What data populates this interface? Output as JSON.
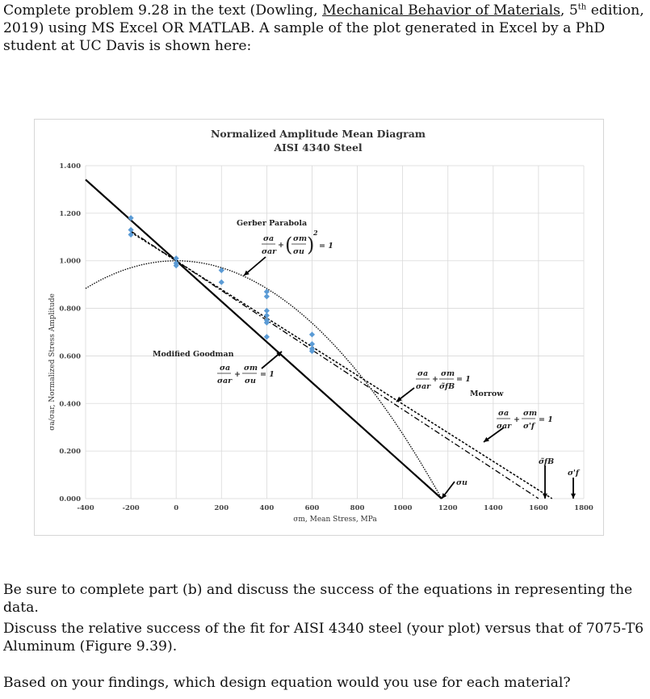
{
  "intro": {
    "part1": "Complete problem  9.28 in the text (Dowling, ",
    "book": "Mechanical Behavior of Materials",
    "part2": ", 5",
    "sup": "th",
    "part3": " edition, 2019)  using MS Excel OR MATLAB.  A sample of the plot generated in Excel by a PhD student at UC Davis is shown here:"
  },
  "questions": {
    "q1": "Be sure to complete part (b) and discuss the success of the equations in representing the data.",
    "q2": "Discuss the relative success of the fit for AISI 4340 steel (your plot) versus that of 7075-T6 Aluminum (Figure 9.39).",
    "q3": "Based on your findings, which design equation would you use for each material?"
  },
  "chart_data": {
    "type": "scatter",
    "title": "Normalized Amplitude Mean Diagram",
    "subtitle": "AISI 4340 Steel",
    "xlabel": "σm, Mean Stress, MPa",
    "ylabel": "σa/σar, Normalized Stress Amplitude",
    "xlim": [
      -400,
      1800
    ],
    "ylim": [
      0,
      1.4
    ],
    "x_ticks": [
      "-400",
      "-200",
      "0",
      "200",
      "400",
      "600",
      "800",
      "1000",
      "1200",
      "1400",
      "1600",
      "1800"
    ],
    "y_ticks": [
      "0.000",
      "0.200",
      "0.400",
      "0.600",
      "0.800",
      "1.000",
      "1.200",
      "1.400"
    ],
    "grid": true,
    "sigma_u": 1172,
    "sigma_fB": 1600,
    "sigma_f_prime": 1660,
    "points": [
      {
        "x": -200,
        "y": 1.18
      },
      {
        "x": -200,
        "y": 1.13
      },
      {
        "x": -200,
        "y": 1.11
      },
      {
        "x": 0,
        "y": 1.01
      },
      {
        "x": 0,
        "y": 0.99
      },
      {
        "x": 0,
        "y": 0.98
      },
      {
        "x": 200,
        "y": 0.96
      },
      {
        "x": 200,
        "y": 0.91
      },
      {
        "x": 400,
        "y": 0.87
      },
      {
        "x": 400,
        "y": 0.85
      },
      {
        "x": 400,
        "y": 0.79
      },
      {
        "x": 400,
        "y": 0.77
      },
      {
        "x": 400,
        "y": 0.75
      },
      {
        "x": 400,
        "y": 0.74
      },
      {
        "x": 400,
        "y": 0.68
      },
      {
        "x": 600,
        "y": 0.69
      },
      {
        "x": 600,
        "y": 0.65
      },
      {
        "x": 600,
        "y": 0.63
      },
      {
        "x": 600,
        "y": 0.62
      }
    ],
    "annotations": {
      "gerber": "Gerber Parabola",
      "goodman": "Modified Goodman",
      "morrow": "Morrow",
      "eq_gerber_a": "σa",
      "eq_gerber_ar": "σar",
      "eq_gerber_m": "σm",
      "eq_gerber_u": "σu",
      "eq_gerber_exp": "2",
      "eq_rhs": "= 1",
      "eq_goodman_a": "σa",
      "eq_goodman_ar": "σar",
      "eq_goodman_m": "σm",
      "eq_goodman_u": "σu",
      "eq_fB_a": "σa",
      "eq_fB_ar": "σar",
      "eq_fB_m": "σm",
      "eq_fB_fB": "σ̃fB",
      "eq_morrow_a": "σa",
      "eq_morrow_ar": "σar",
      "eq_morrow_m": "σm",
      "eq_morrow_f": "σ'f",
      "label_su": "σu",
      "label_sfB": "σ̃fB",
      "label_sf": "σ'f",
      "plus": "+"
    },
    "colors": {
      "points": "#5b9bd5",
      "lines": "#000000",
      "grid": "#d9d9d9"
    }
  }
}
